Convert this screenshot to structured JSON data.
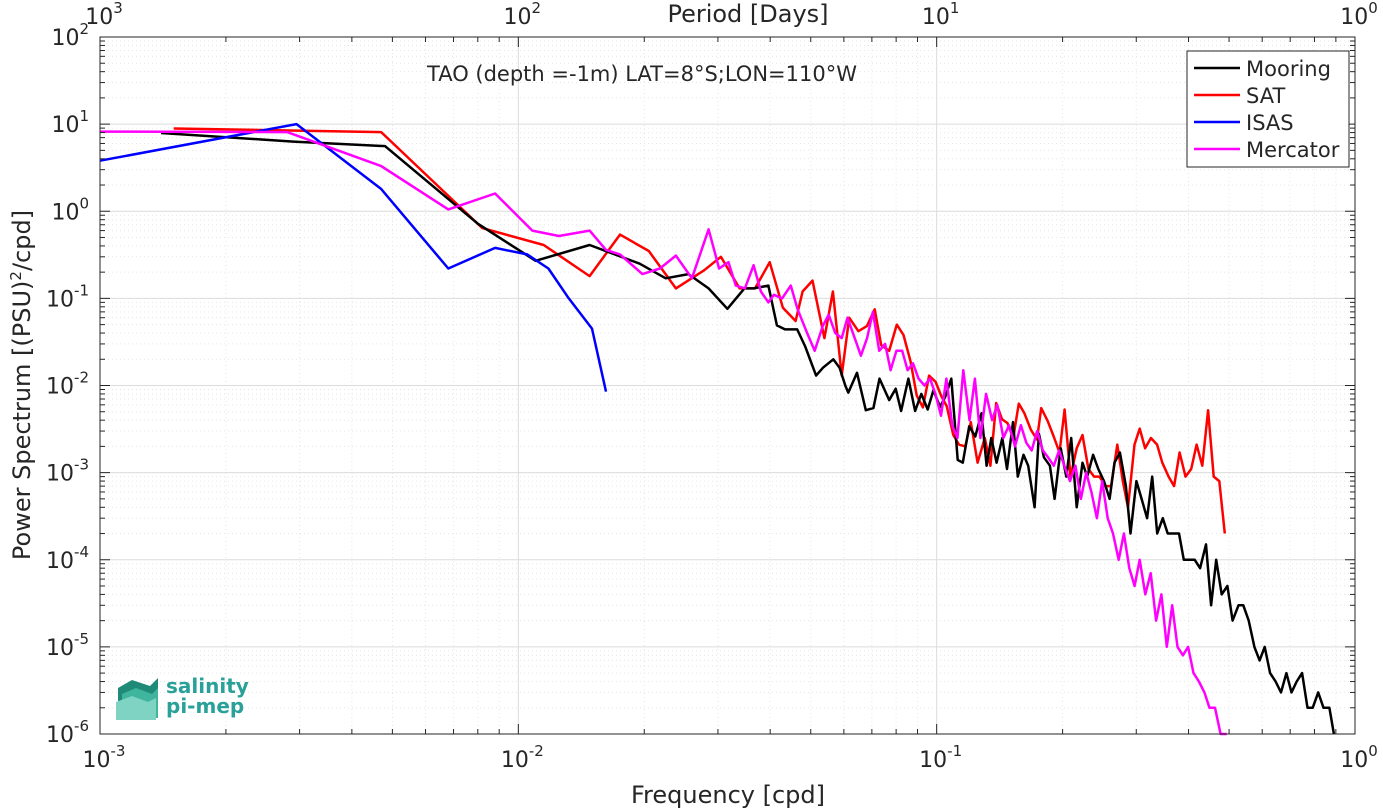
{
  "chart_data": {
    "type": "line",
    "title": "TAO (depth =-1m) LAT=8°S;LON=110°W",
    "xlabel": "Frequency [cpd]",
    "ylabel": "Power Spectrum [(PSU)²/cpd]",
    "top_xlabel": "Period [Days]",
    "x_scale": "log",
    "y_scale": "log",
    "xlim": [
      0.001,
      1
    ],
    "ylim": [
      1e-06,
      100
    ],
    "grid": true,
    "legend_position": "top-right",
    "x_ticks": [
      {
        "base": "10",
        "exp": "-3"
      },
      {
        "base": "10",
        "exp": "-2"
      },
      {
        "base": "10",
        "exp": "-1"
      },
      {
        "base": "10",
        "exp": "0"
      }
    ],
    "top_ticks": [
      {
        "base": "10",
        "exp": "3"
      },
      {
        "base": "10",
        "exp": "2"
      },
      {
        "base": "10",
        "exp": "1"
      },
      {
        "base": "10",
        "exp": "0"
      }
    ],
    "y_ticks": [
      {
        "base": "10",
        "exp": "-6"
      },
      {
        "base": "10",
        "exp": "-5"
      },
      {
        "base": "10",
        "exp": "-4"
      },
      {
        "base": "10",
        "exp": "-3"
      },
      {
        "base": "10",
        "exp": "-2"
      },
      {
        "base": "10",
        "exp": "-1"
      },
      {
        "base": "10",
        "exp": "0"
      },
      {
        "base": "10",
        "exp": "1"
      },
      {
        "base": "10",
        "exp": "2"
      }
    ],
    "series": [
      {
        "name": "Mooring",
        "color": "#000000",
        "x": [
          0.0014,
          0.0029,
          0.0048,
          0.008,
          0.011,
          0.0148,
          0.0195,
          0.0225,
          0.0255,
          0.0285,
          0.0316,
          0.0347,
          0.0365,
          0.0396,
          0.0415,
          0.0434,
          0.0464,
          0.0485,
          0.0515,
          0.0535,
          0.0566,
          0.0586,
          0.0605,
          0.0615,
          0.0645,
          0.0677,
          0.0706,
          0.073,
          0.077,
          0.0798,
          0.0822,
          0.0856,
          0.0888,
          0.0919,
          0.0952,
          0.0982,
          0.1019,
          0.1049,
          0.1084,
          0.1123,
          0.1155,
          0.1196,
          0.1237,
          0.128,
          0.1316,
          0.1351,
          0.1391,
          0.1435,
          0.1473,
          0.1522,
          0.1563,
          0.1613,
          0.1655,
          0.1714,
          0.1755,
          0.1804,
          0.1865,
          0.1914,
          0.1979,
          0.2041,
          0.2097,
          0.2161,
          0.2231,
          0.229,
          0.2366,
          0.2434,
          0.2512,
          0.2591,
          0.2661,
          0.2741,
          0.2834,
          0.2907,
          0.3002,
          0.3089,
          0.3185,
          0.3275,
          0.3366,
          0.3471,
          0.3566,
          0.3674,
          0.3796,
          0.3898,
          0.4019,
          0.4139,
          0.4263,
          0.4403,
          0.453,
          0.4657,
          0.48,
          0.4955,
          0.5098,
          0.5265,
          0.5406,
          0.5572,
          0.5748,
          0.5915,
          0.6082,
          0.6268,
          0.6461,
          0.6655,
          0.6854,
          0.7052,
          0.7254,
          0.7473,
          0.7701,
          0.7922,
          0.8165,
          0.8407,
          0.8684,
          0.8902
        ],
        "y": [
          7.9,
          6.3,
          5.6,
          0.72,
          0.27,
          0.41,
          0.25,
          0.17,
          0.19,
          0.13,
          0.076,
          0.13,
          0.13,
          0.14,
          0.049,
          0.044,
          0.044,
          0.028,
          0.013,
          0.016,
          0.02,
          0.016,
          0.0099,
          0.0083,
          0.014,
          0.0052,
          0.0055,
          0.012,
          0.0068,
          0.0092,
          0.0051,
          0.012,
          0.0051,
          0.008,
          0.0053,
          0.0088,
          0.0057,
          0.0075,
          0.012,
          0.0014,
          0.0013,
          0.0034,
          0.0026,
          0.0048,
          0.0012,
          0.0025,
          0.0013,
          0.0025,
          0.0011,
          0.0038,
          0.0009,
          0.0016,
          0.0012,
          0.0004,
          0.0028,
          0.0015,
          0.0012,
          0.0005,
          0.0019,
          0.0009,
          0.0025,
          0.0004,
          0.0013,
          0.0009,
          0.0016,
          0.0011,
          0.0008,
          0.0005,
          0.0013,
          0.0017,
          0.0007,
          0.0002,
          0.0008,
          0.0005,
          0.0003,
          0.0009,
          0.0002,
          0.0003,
          0.0002,
          0.0002,
          0.0002,
          0.0001,
          0.0001,
          0.0001,
          8e-05,
          0.00015,
          3e-05,
          0.0001,
          4e-05,
          5e-05,
          2e-05,
          3e-05,
          3e-05,
          2e-05,
          1e-05,
          7e-06,
          1e-05,
          5e-06,
          4e-06,
          3e-06,
          5e-06,
          3e-06,
          4e-06,
          5e-06,
          2e-06,
          2e-06,
          3e-06,
          2e-06,
          2e-06,
          1e-06
        ]
      },
      {
        "name": "SAT",
        "color": "#ff0000",
        "x": [
          0.0015,
          0.0047,
          0.0082,
          0.0115,
          0.0148,
          0.0175,
          0.0205,
          0.0238,
          0.0278,
          0.0305,
          0.0338,
          0.0368,
          0.0399,
          0.0429,
          0.046,
          0.0478,
          0.0505,
          0.0539,
          0.0565,
          0.0593,
          0.0618,
          0.065,
          0.0681,
          0.0711,
          0.0737,
          0.077,
          0.0803,
          0.0833,
          0.0866,
          0.0896,
          0.0927,
          0.0959,
          0.0994,
          0.1025,
          0.1057,
          0.1096,
          0.1131,
          0.1171,
          0.1207,
          0.1253,
          0.1303,
          0.1344,
          0.1388,
          0.1433,
          0.1477,
          0.1524,
          0.1572,
          0.1621,
          0.168,
          0.1737,
          0.1778,
          0.1843,
          0.1904,
          0.1966,
          0.2022,
          0.2089,
          0.2162,
          0.2231,
          0.2305,
          0.2379,
          0.2449,
          0.2533,
          0.2612,
          0.2703,
          0.2785,
          0.2866,
          0.2971,
          0.3057,
          0.315,
          0.3252,
          0.3365,
          0.3462,
          0.3584,
          0.3694,
          0.3809,
          0.3934,
          0.4059,
          0.4181,
          0.4314,
          0.4454,
          0.4595,
          0.4739,
          0.4885
        ],
        "y": [
          8.9,
          8.1,
          0.64,
          0.41,
          0.18,
          0.54,
          0.35,
          0.13,
          0.21,
          0.3,
          0.13,
          0.13,
          0.26,
          0.078,
          0.055,
          0.12,
          0.16,
          0.035,
          0.12,
          0.013,
          0.06,
          0.042,
          0.048,
          0.075,
          0.029,
          0.025,
          0.05,
          0.038,
          0.019,
          0.0077,
          0.0056,
          0.013,
          0.011,
          0.0076,
          0.0058,
          0.0027,
          0.0021,
          0.002,
          0.0038,
          0.0013,
          0.0025,
          0.0012,
          0.0063,
          0.0041,
          0.0037,
          0.0025,
          0.0062,
          0.0048,
          0.0031,
          0.0024,
          0.0055,
          0.0039,
          0.0026,
          0.0017,
          0.0053,
          0.0009,
          0.0019,
          0.0027,
          0.0011,
          0.0009,
          0.0009,
          0.0007,
          0.0007,
          0.0021,
          0.0008,
          0.0004,
          0.0021,
          0.0032,
          0.0019,
          0.0025,
          0.0021,
          0.0013,
          0.0009,
          0.0007,
          0.0017,
          0.0009,
          0.0011,
          0.0021,
          0.0012,
          0.0052,
          0.0009,
          0.0008,
          0.0002
        ]
      },
      {
        "name": "ISAS",
        "color": "#0000ff",
        "x": [
          0.001,
          0.00295,
          0.0047,
          0.0068,
          0.0088,
          0.0105,
          0.0118,
          0.0132,
          0.015,
          0.0162
        ],
        "y": [
          3.8,
          10,
          1.8,
          0.22,
          0.38,
          0.32,
          0.22,
          0.1,
          0.045,
          0.0085
        ]
      },
      {
        "name": "Mercator",
        "color": "#ff00ff",
        "x": [
          0.001,
          0.0028,
          0.0047,
          0.0068,
          0.0088,
          0.0108,
          0.0125,
          0.0148,
          0.0162,
          0.0175,
          0.0198,
          0.0218,
          0.0238,
          0.026,
          0.0285,
          0.0302,
          0.0318,
          0.0331,
          0.0348,
          0.0365,
          0.038,
          0.0396,
          0.0408,
          0.0427,
          0.0448,
          0.0465,
          0.049,
          0.0511,
          0.0534,
          0.0552,
          0.0572,
          0.0593,
          0.0612,
          0.0637,
          0.0659,
          0.0682,
          0.0704,
          0.0729,
          0.0753,
          0.0776,
          0.0801,
          0.0827,
          0.0852,
          0.0878,
          0.0905,
          0.0935,
          0.0964,
          0.0993,
          0.1024,
          0.1055,
          0.1089,
          0.1121,
          0.1158,
          0.1198,
          0.1234,
          0.1272,
          0.1313,
          0.1357,
          0.1396,
          0.1444,
          0.1489,
          0.1539,
          0.159,
          0.1638,
          0.1687,
          0.1738,
          0.1794,
          0.1846,
          0.1905,
          0.1962,
          0.2019,
          0.2083,
          0.2146,
          0.2212,
          0.2277,
          0.2344,
          0.2416,
          0.2487,
          0.2563,
          0.2639,
          0.2724,
          0.2803,
          0.2888,
          0.2972,
          0.3057,
          0.3153,
          0.3249,
          0.3346,
          0.3445,
          0.355,
          0.3657,
          0.3764,
          0.3878,
          0.3991,
          0.4111,
          0.4234,
          0.4364,
          0.449,
          0.4628,
          0.4773,
          0.4936
        ],
        "y": [
          8.2,
          8.1,
          3.3,
          1.05,
          1.6,
          0.6,
          0.52,
          0.6,
          0.36,
          0.32,
          0.19,
          0.22,
          0.31,
          0.17,
          0.62,
          0.22,
          0.26,
          0.14,
          0.13,
          0.24,
          0.12,
          0.09,
          0.11,
          0.1,
          0.14,
          0.075,
          0.04,
          0.025,
          0.048,
          0.065,
          0.04,
          0.035,
          0.06,
          0.035,
          0.022,
          0.035,
          0.07,
          0.025,
          0.03,
          0.015,
          0.025,
          0.025,
          0.015,
          0.018,
          0.012,
          0.01,
          0.012,
          0.008,
          0.0045,
          0.012,
          0.0035,
          0.0025,
          0.015,
          0.004,
          0.012,
          0.0025,
          0.008,
          0.004,
          0.006,
          0.0025,
          0.0035,
          0.002,
          0.0035,
          0.0022,
          0.0018,
          0.003,
          0.0018,
          0.0015,
          0.0012,
          0.0018,
          0.0012,
          0.0008,
          0.0012,
          0.0005,
          0.001,
          0.0006,
          0.0003,
          0.0008,
          0.0003,
          0.0002,
          0.0001,
          0.0002,
          8e-05,
          5e-05,
          0.0001,
          4e-05,
          7e-05,
          2e-05,
          4e-05,
          1e-05,
          3e-05,
          1e-05,
          8e-06,
          1e-05,
          5e-06,
          4e-06,
          3e-06,
          2e-06,
          2e-06,
          1e-06,
          1e-06
        ]
      }
    ]
  },
  "logo": {
    "line1": "salinity",
    "line2": "pi-mep",
    "color": "#2aa198"
  }
}
